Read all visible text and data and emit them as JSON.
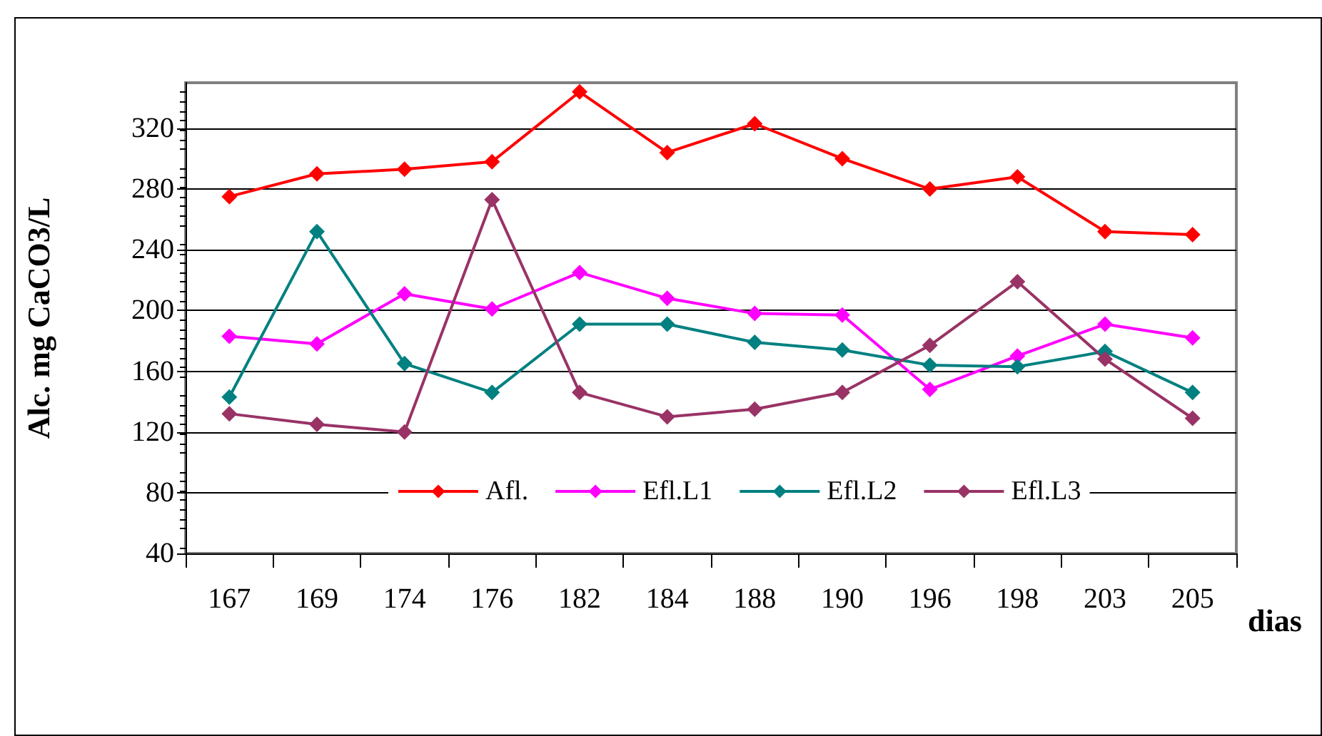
{
  "chart_data": {
    "type": "line",
    "xlabel": "dias",
    "ylabel": "Alc. mg CaCO3/L",
    "categories": [
      "167",
      "169",
      "174",
      "176",
      "182",
      "184",
      "188",
      "190",
      "196",
      "198",
      "203",
      "205"
    ],
    "series": [
      {
        "name": "Afl.",
        "color": "#ff0000",
        "values": [
          275,
          290,
          293,
          298,
          344,
          304,
          323,
          300,
          280,
          288,
          252,
          250
        ]
      },
      {
        "name": "Efl.L1",
        "color": "#ff00ff",
        "values": [
          183,
          178,
          211,
          201,
          225,
          208,
          198,
          197,
          148,
          170,
          191,
          182
        ]
      },
      {
        "name": "Efl.L2",
        "color": "#008080",
        "values": [
          143,
          252,
          165,
          146,
          191,
          191,
          179,
          174,
          164,
          163,
          173,
          146
        ]
      },
      {
        "name": "Efl.L3",
        "color": "#993366",
        "values": [
          132,
          125,
          120,
          273,
          146,
          130,
          135,
          146,
          177,
          219,
          168,
          129
        ]
      }
    ],
    "ylim": [
      40,
      350
    ],
    "yticks": [
      40,
      80,
      120,
      160,
      200,
      240,
      280,
      320
    ],
    "grid": "y",
    "legend": "bottom",
    "marker": "diamond",
    "line_style": "solid"
  }
}
